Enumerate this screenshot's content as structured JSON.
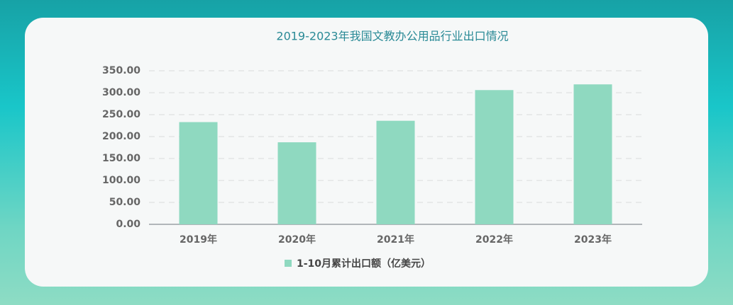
{
  "chart_data": {
    "type": "bar",
    "title": "2019-2023年我国文教办公用品行业出口情况",
    "categories": [
      "2019年",
      "2020年",
      "2021年",
      "2022年",
      "2023年"
    ],
    "series": [
      {
        "name": "1-10月累计出口额（亿美元）",
        "color": "#8fd9c0",
        "values": [
          233,
          187,
          236,
          306,
          319
        ]
      }
    ],
    "ylim": [
      0,
      350
    ],
    "yticks": [
      {
        "value": 0,
        "label": "0.00"
      },
      {
        "value": 50,
        "label": "50.00"
      },
      {
        "value": 100,
        "label": "100.00"
      },
      {
        "value": 150,
        "label": "150.00"
      },
      {
        "value": 200,
        "label": "200.00"
      },
      {
        "value": 250,
        "label": "250.00"
      },
      {
        "value": 300,
        "label": "300.00"
      },
      {
        "value": 350,
        "label": "350.00"
      }
    ],
    "grid": true,
    "legend": "bottom"
  }
}
